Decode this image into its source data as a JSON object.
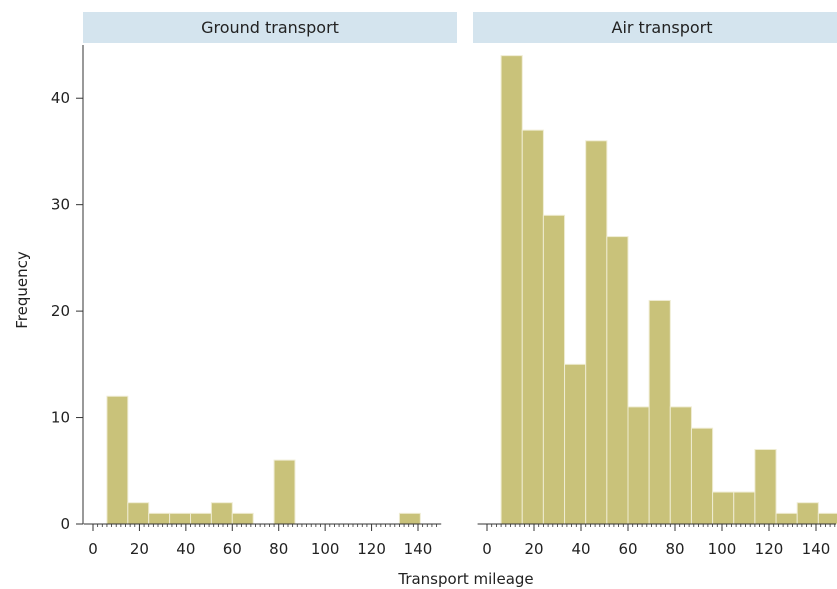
{
  "chart_data": {
    "type": "bar",
    "xlabel": "Transport mileage",
    "ylabel": "Frequency",
    "ylim": [
      0,
      45
    ],
    "xlim": [
      -4,
      150
    ],
    "x_ticks": [
      "0",
      "20",
      "40",
      "60",
      "80",
      "100",
      "120",
      "140"
    ],
    "y_ticks": [
      "0",
      "10",
      "20",
      "30",
      "40"
    ],
    "bin_width": 9,
    "colors": {
      "bar": "#c9c27a",
      "bar_edge": "#efecd2",
      "strip": "#d4e4ee"
    },
    "panels": [
      {
        "title": "Ground transport",
        "bin_starts": [
          6,
          15,
          24,
          33,
          42,
          51,
          60,
          69,
          78,
          87,
          96,
          105,
          114,
          123,
          132
        ],
        "values": [
          12,
          2,
          1,
          1,
          1,
          2,
          1,
          0,
          6,
          0,
          0,
          0,
          0,
          0,
          1
        ]
      },
      {
        "title": "Air transport",
        "bin_starts": [
          6,
          15,
          24,
          33,
          42,
          51,
          60,
          69,
          78,
          87,
          96,
          105,
          114,
          123,
          132,
          141
        ],
        "values": [
          44,
          37,
          29,
          15,
          36,
          27,
          11,
          21,
          11,
          9,
          3,
          3,
          7,
          1,
          2,
          1
        ]
      }
    ]
  }
}
